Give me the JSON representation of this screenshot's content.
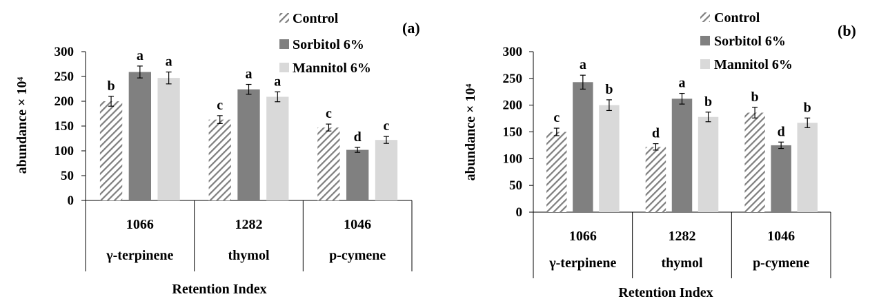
{
  "chart_data": [
    {
      "type": "bar",
      "panel_label": "(a)",
      "categories": [
        {
          "index": "1066",
          "compound": "γ-terpinene"
        },
        {
          "index": "1282",
          "compound": "thymol"
        },
        {
          "index": "1046",
          "compound": "p-cymene"
        }
      ],
      "series": [
        {
          "name": "Control",
          "color": "#7f7f7f",
          "pattern": "hatch",
          "values": [
            200,
            163,
            147
          ],
          "errors": [
            10,
            8,
            7
          ],
          "letters": [
            "b",
            "c",
            "c"
          ]
        },
        {
          "name": "Sorbitol 6%",
          "color": "#808080",
          "pattern": "solid",
          "values": [
            259,
            224,
            102
          ],
          "errors": [
            12,
            10,
            5
          ],
          "letters": [
            "a",
            "a",
            "d"
          ]
        },
        {
          "name": "Mannitol 6%",
          "color": "#d9d9d9",
          "pattern": "solid",
          "values": [
            247,
            209,
            122
          ],
          "errors": [
            12,
            10,
            7
          ],
          "letters": [
            "a",
            "a",
            "c"
          ]
        }
      ],
      "ylabel": "abundance × 10⁴",
      "xlabel": "Retention Index",
      "ylim": [
        0,
        300
      ],
      "yticks": [
        "0",
        "50",
        "100",
        "150",
        "200",
        "250",
        "300"
      ],
      "grid": false,
      "legend": "top-right"
    },
    {
      "type": "bar",
      "panel_label": "(b)",
      "categories": [
        {
          "index": "1066",
          "compound": "γ-terpinene"
        },
        {
          "index": "1282",
          "compound": "thymol"
        },
        {
          "index": "1046",
          "compound": "p-cymene"
        }
      ],
      "series": [
        {
          "name": "Control",
          "color": "#7f7f7f",
          "pattern": "hatch",
          "values": [
            150,
            122,
            186
          ],
          "errors": [
            7,
            6,
            10
          ],
          "letters": [
            "c",
            "d",
            "b"
          ]
        },
        {
          "name": "Sorbitol 6%",
          "color": "#808080",
          "pattern": "solid",
          "values": [
            243,
            212,
            125
          ],
          "errors": [
            13,
            10,
            6
          ],
          "letters": [
            "a",
            "a",
            "d"
          ]
        },
        {
          "name": "Mannitol 6%",
          "color": "#d9d9d9",
          "pattern": "solid",
          "values": [
            200,
            178,
            167
          ],
          "errors": [
            10,
            9,
            9
          ],
          "letters": [
            "b",
            "b",
            "b"
          ]
        }
      ],
      "ylabel": "abundance × 10⁴",
      "xlabel": "Retention Index",
      "ylim": [
        0,
        300
      ],
      "yticks": [
        "0",
        "50",
        "100",
        "150",
        "200",
        "250",
        "300"
      ],
      "grid": false,
      "legend": "top-right"
    }
  ]
}
